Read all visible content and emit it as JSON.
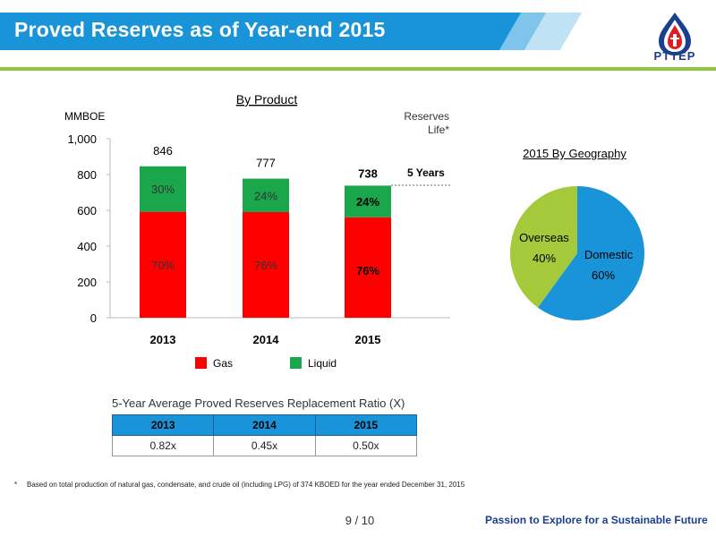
{
  "header": {
    "title": "Proved Reserves as of Year-end 2015",
    "logo_text": "PTTEP"
  },
  "chart_data": [
    {
      "type": "bar",
      "stacked": true,
      "title": "By Product",
      "ylabel": "MMBOE",
      "right_label_line1": "Reserves",
      "right_label_line2": "Life*",
      "ylim": [
        0,
        1000
      ],
      "yticks": [
        "0",
        "200",
        "400",
        "600",
        "800",
        "1,000"
      ],
      "categories": [
        "2013",
        "2014",
        "2015"
      ],
      "totals": [
        846,
        777,
        738
      ],
      "series": [
        {
          "name": "Gas",
          "color": "#ff0000",
          "values": [
            592,
            590,
            561
          ],
          "labels": [
            "70%",
            "76%",
            "76%"
          ]
        },
        {
          "name": "Liquid",
          "color": "#1aa64b",
          "values": [
            254,
            187,
            177
          ],
          "labels": [
            "30%",
            "24%",
            "24%"
          ]
        }
      ],
      "annotation": "5 Years",
      "legend_position": "bottom"
    },
    {
      "type": "pie",
      "title": "2015 By Geography",
      "slices": [
        {
          "name": "Domestic",
          "value": 60,
          "label": "60%",
          "color": "#1a94d8"
        },
        {
          "name": "Overseas",
          "value": 40,
          "label": "40%",
          "color": "#a4c93a"
        }
      ]
    }
  ],
  "ratio_table": {
    "title": "5-Year Average Proved Reserves Replacement Ratio (X)",
    "headers": [
      "2013",
      "2014",
      "2015"
    ],
    "values": [
      "0.82x",
      "0.45x",
      "0.50x"
    ]
  },
  "footnote": {
    "mark": "*",
    "text": "Based on total production of natural gas, condensate, and crude oil (including LPG) of 374 KBOED for the year ended December 31, 2015"
  },
  "footer": {
    "page": "9 / 10",
    "slogan": "Passion to Explore for a Sustainable Future"
  }
}
